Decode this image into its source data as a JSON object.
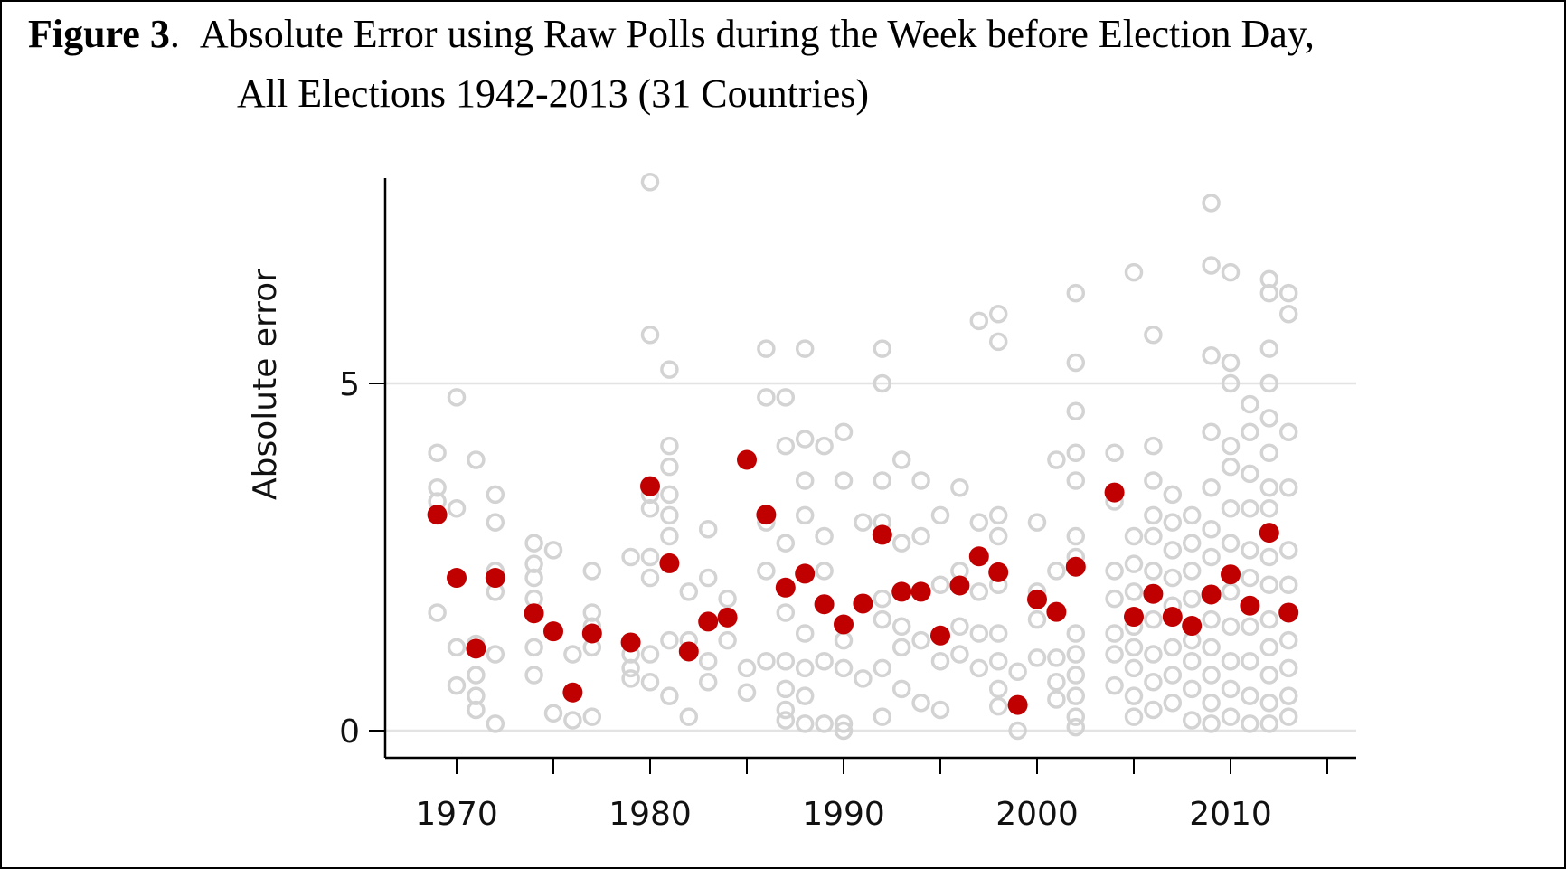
{
  "figure": {
    "label": "Figure 3",
    "title_line1": "Absolute Error using Raw Polls during the Week before Election Day,",
    "title_line2": "All Elections 1942-2013 (31 Countries)"
  },
  "chart_data": {
    "type": "scatter",
    "title": "Absolute Error using Raw Polls during the Week before Election Day, All Elections 1942-2013 (31 Countries)",
    "xlabel": "",
    "ylabel": "Absolute error",
    "xlim": [
      1966.5,
      2016.5
    ],
    "ylim": [
      -0.4,
      8.1
    ],
    "x_ticks": [
      1970,
      1975,
      1980,
      1985,
      1990,
      1995,
      2000,
      2005,
      2010,
      2015
    ],
    "x_tick_labels": [
      "1970",
      "1980",
      "1990",
      "2000",
      "2010"
    ],
    "x_tick_label_values": [
      1970,
      1980,
      1990,
      2000,
      2010
    ],
    "y_ticks": [
      0,
      5
    ],
    "y_tick_labels": [
      "0",
      "5"
    ],
    "grid": "horizontal at y ticks",
    "colors": {
      "polls": "#d3d3d3",
      "mean": "#c00000"
    },
    "series": [
      {
        "marker": "hollow circle",
        "points": [
          [
            1969,
            4.0
          ],
          [
            1969,
            3.5
          ],
          [
            1969,
            3.3
          ],
          [
            1969,
            1.7
          ],
          [
            1970,
            4.8
          ],
          [
            1970,
            3.2
          ],
          [
            1970,
            1.2
          ],
          [
            1970,
            0.65
          ],
          [
            1971,
            3.9
          ],
          [
            1971,
            1.25
          ],
          [
            1971,
            0.8
          ],
          [
            1971,
            0.5
          ],
          [
            1971,
            0.3
          ],
          [
            1972,
            3.4
          ],
          [
            1972,
            3.0
          ],
          [
            1972,
            2.3
          ],
          [
            1972,
            2.0
          ],
          [
            1972,
            1.1
          ],
          [
            1972,
            0.1
          ],
          [
            1974,
            2.7
          ],
          [
            1974,
            2.4
          ],
          [
            1974,
            2.2
          ],
          [
            1974,
            1.9
          ],
          [
            1974,
            1.2
          ],
          [
            1974,
            0.8
          ],
          [
            1975,
            2.6
          ],
          [
            1975,
            0.25
          ],
          [
            1976,
            1.1
          ],
          [
            1976,
            0.15
          ],
          [
            1977,
            2.3
          ],
          [
            1977,
            1.7
          ],
          [
            1977,
            1.5
          ],
          [
            1977,
            1.2
          ],
          [
            1977,
            0.2
          ],
          [
            1979,
            2.5
          ],
          [
            1979,
            1.1
          ],
          [
            1979,
            0.9
          ],
          [
            1979,
            0.75
          ],
          [
            1980,
            7.9
          ],
          [
            1980,
            5.7
          ],
          [
            1980,
            3.4
          ],
          [
            1980,
            3.2
          ],
          [
            1980,
            2.5
          ],
          [
            1980,
            2.2
          ],
          [
            1980,
            1.1
          ],
          [
            1980,
            0.7
          ],
          [
            1981,
            5.2
          ],
          [
            1981,
            4.1
          ],
          [
            1981,
            3.8
          ],
          [
            1981,
            3.4
          ],
          [
            1981,
            3.1
          ],
          [
            1981,
            2.8
          ],
          [
            1981,
            2.4
          ],
          [
            1981,
            1.3
          ],
          [
            1981,
            0.5
          ],
          [
            1982,
            2.0
          ],
          [
            1982,
            1.3
          ],
          [
            1982,
            0.2
          ],
          [
            1983,
            2.9
          ],
          [
            1983,
            2.2
          ],
          [
            1983,
            1.0
          ],
          [
            1983,
            0.7
          ],
          [
            1984,
            1.9
          ],
          [
            1984,
            1.3
          ],
          [
            1985,
            0.9
          ],
          [
            1985,
            0.55
          ],
          [
            1986,
            5.5
          ],
          [
            1986,
            4.8
          ],
          [
            1986,
            3.0
          ],
          [
            1986,
            2.3
          ],
          [
            1986,
            1.0
          ],
          [
            1987,
            4.8
          ],
          [
            1987,
            4.1
          ],
          [
            1987,
            2.7
          ],
          [
            1987,
            1.7
          ],
          [
            1987,
            1.0
          ],
          [
            1987,
            0.6
          ],
          [
            1987,
            0.3
          ],
          [
            1987,
            0.15
          ],
          [
            1988,
            5.5
          ],
          [
            1988,
            4.2
          ],
          [
            1988,
            3.6
          ],
          [
            1988,
            3.1
          ],
          [
            1988,
            1.4
          ],
          [
            1988,
            0.9
          ],
          [
            1988,
            0.5
          ],
          [
            1988,
            0.1
          ],
          [
            1989,
            4.1
          ],
          [
            1989,
            2.8
          ],
          [
            1989,
            2.3
          ],
          [
            1989,
            1.0
          ],
          [
            1989,
            0.1
          ],
          [
            1990,
            4.3
          ],
          [
            1990,
            3.6
          ],
          [
            1990,
            1.3
          ],
          [
            1990,
            0.9
          ],
          [
            1990,
            0.1
          ],
          [
            1990,
            0.0
          ],
          [
            1991,
            3.0
          ],
          [
            1991,
            0.75
          ],
          [
            1992,
            5.5
          ],
          [
            1992,
            5.0
          ],
          [
            1992,
            3.6
          ],
          [
            1992,
            3.0
          ],
          [
            1992,
            1.9
          ],
          [
            1992,
            1.6
          ],
          [
            1992,
            0.9
          ],
          [
            1992,
            0.2
          ],
          [
            1993,
            3.9
          ],
          [
            1993,
            2.7
          ],
          [
            1993,
            1.5
          ],
          [
            1993,
            1.2
          ],
          [
            1993,
            0.6
          ],
          [
            1994,
            3.6
          ],
          [
            1994,
            2.8
          ],
          [
            1994,
            1.3
          ],
          [
            1994,
            0.4
          ],
          [
            1995,
            3.1
          ],
          [
            1995,
            2.1
          ],
          [
            1995,
            1.0
          ],
          [
            1995,
            0.3
          ],
          [
            1996,
            3.5
          ],
          [
            1996,
            2.3
          ],
          [
            1996,
            1.5
          ],
          [
            1996,
            1.1
          ],
          [
            1997,
            5.9
          ],
          [
            1997,
            3.0
          ],
          [
            1997,
            2.0
          ],
          [
            1997,
            1.4
          ],
          [
            1997,
            0.9
          ],
          [
            1998,
            6.0
          ],
          [
            1998,
            5.6
          ],
          [
            1998,
            3.1
          ],
          [
            1998,
            2.8
          ],
          [
            1998,
            2.1
          ],
          [
            1998,
            1.4
          ],
          [
            1998,
            1.0
          ],
          [
            1998,
            0.6
          ],
          [
            1998,
            0.35
          ],
          [
            1999,
            0.85
          ],
          [
            1999,
            0.0
          ],
          [
            2000,
            3.0
          ],
          [
            2000,
            2.0
          ],
          [
            2000,
            1.6
          ],
          [
            2000,
            1.05
          ],
          [
            2001,
            3.9
          ],
          [
            2001,
            2.3
          ],
          [
            2001,
            1.05
          ],
          [
            2001,
            0.7
          ],
          [
            2001,
            0.45
          ],
          [
            2002,
            6.3
          ],
          [
            2002,
            5.3
          ],
          [
            2002,
            4.6
          ],
          [
            2002,
            4.0
          ],
          [
            2002,
            3.6
          ],
          [
            2002,
            2.8
          ],
          [
            2002,
            2.5
          ],
          [
            2002,
            1.4
          ],
          [
            2002,
            1.1
          ],
          [
            2002,
            0.8
          ],
          [
            2002,
            0.5
          ],
          [
            2002,
            0.2
          ],
          [
            2002,
            0.05
          ],
          [
            2004,
            4.0
          ],
          [
            2004,
            3.3
          ],
          [
            2004,
            2.3
          ],
          [
            2004,
            1.9
          ],
          [
            2004,
            1.4
          ],
          [
            2004,
            1.1
          ],
          [
            2004,
            0.65
          ],
          [
            2005,
            6.6
          ],
          [
            2005,
            2.8
          ],
          [
            2005,
            2.4
          ],
          [
            2005,
            2.0
          ],
          [
            2005,
            1.5
          ],
          [
            2005,
            1.2
          ],
          [
            2005,
            0.9
          ],
          [
            2005,
            0.5
          ],
          [
            2005,
            0.2
          ],
          [
            2006,
            5.7
          ],
          [
            2006,
            4.1
          ],
          [
            2006,
            3.6
          ],
          [
            2006,
            3.1
          ],
          [
            2006,
            2.8
          ],
          [
            2006,
            2.3
          ],
          [
            2006,
            1.6
          ],
          [
            2006,
            1.1
          ],
          [
            2006,
            0.7
          ],
          [
            2006,
            0.3
          ],
          [
            2007,
            3.4
          ],
          [
            2007,
            3.0
          ],
          [
            2007,
            2.6
          ],
          [
            2007,
            2.2
          ],
          [
            2007,
            1.8
          ],
          [
            2007,
            1.2
          ],
          [
            2007,
            0.8
          ],
          [
            2007,
            0.4
          ],
          [
            2008,
            3.1
          ],
          [
            2008,
            2.7
          ],
          [
            2008,
            2.3
          ],
          [
            2008,
            1.9
          ],
          [
            2008,
            1.3
          ],
          [
            2008,
            1.0
          ],
          [
            2008,
            0.6
          ],
          [
            2008,
            0.15
          ],
          [
            2009,
            7.6
          ],
          [
            2009,
            6.7
          ],
          [
            2009,
            5.4
          ],
          [
            2009,
            4.3
          ],
          [
            2009,
            3.5
          ],
          [
            2009,
            2.9
          ],
          [
            2009,
            2.5
          ],
          [
            2009,
            1.6
          ],
          [
            2009,
            1.2
          ],
          [
            2009,
            0.8
          ],
          [
            2009,
            0.4
          ],
          [
            2009,
            0.1
          ],
          [
            2010,
            6.6
          ],
          [
            2010,
            5.3
          ],
          [
            2010,
            5.0
          ],
          [
            2010,
            4.1
          ],
          [
            2010,
            3.8
          ],
          [
            2010,
            3.2
          ],
          [
            2010,
            2.7
          ],
          [
            2010,
            2.0
          ],
          [
            2010,
            1.5
          ],
          [
            2010,
            1.0
          ],
          [
            2010,
            0.6
          ],
          [
            2010,
            0.2
          ],
          [
            2011,
            4.7
          ],
          [
            2011,
            4.3
          ],
          [
            2011,
            3.7
          ],
          [
            2011,
            3.2
          ],
          [
            2011,
            2.6
          ],
          [
            2011,
            2.2
          ],
          [
            2011,
            1.5
          ],
          [
            2011,
            1.0
          ],
          [
            2011,
            0.5
          ],
          [
            2011,
            0.1
          ],
          [
            2012,
            6.5
          ],
          [
            2012,
            6.3
          ],
          [
            2012,
            5.5
          ],
          [
            2012,
            5.0
          ],
          [
            2012,
            4.5
          ],
          [
            2012,
            4.0
          ],
          [
            2012,
            3.5
          ],
          [
            2012,
            3.2
          ],
          [
            2012,
            2.5
          ],
          [
            2012,
            2.1
          ],
          [
            2012,
            1.6
          ],
          [
            2012,
            1.2
          ],
          [
            2012,
            0.8
          ],
          [
            2012,
            0.4
          ],
          [
            2012,
            0.1
          ],
          [
            2013,
            6.3
          ],
          [
            2013,
            6.0
          ],
          [
            2013,
            4.3
          ],
          [
            2013,
            3.5
          ],
          [
            2013,
            2.6
          ],
          [
            2013,
            2.1
          ],
          [
            2013,
            1.7
          ],
          [
            2013,
            1.3
          ],
          [
            2013,
            0.9
          ],
          [
            2013,
            0.5
          ],
          [
            2013,
            0.2
          ]
        ]
      },
      {
        "marker": "filled circle",
        "points": [
          [
            1969,
            3.11
          ],
          [
            1970,
            2.2
          ],
          [
            1971,
            1.18
          ],
          [
            1972,
            2.2
          ],
          [
            1974,
            1.69
          ],
          [
            1975,
            1.43
          ],
          [
            1976,
            0.55
          ],
          [
            1977,
            1.4
          ],
          [
            1979,
            1.27
          ],
          [
            1980,
            3.52
          ],
          [
            1981,
            2.41
          ],
          [
            1982,
            1.14
          ],
          [
            1983,
            1.57
          ],
          [
            1984,
            1.63
          ],
          [
            1985,
            3.9
          ],
          [
            1986,
            3.11
          ],
          [
            1987,
            2.06
          ],
          [
            1988,
            2.26
          ],
          [
            1989,
            1.82
          ],
          [
            1990,
            1.53
          ],
          [
            1991,
            1.83
          ],
          [
            1992,
            2.82
          ],
          [
            1993,
            2.0
          ],
          [
            1994,
            2.0
          ],
          [
            1995,
            1.37
          ],
          [
            1996,
            2.09
          ],
          [
            1997,
            2.51
          ],
          [
            1998,
            2.28
          ],
          [
            1999,
            0.37
          ],
          [
            2000,
            1.89
          ],
          [
            2001,
            1.71
          ],
          [
            2002,
            2.36
          ],
          [
            2004,
            3.43
          ],
          [
            2005,
            1.64
          ],
          [
            2006,
            1.97
          ],
          [
            2007,
            1.64
          ],
          [
            2008,
            1.51
          ],
          [
            2009,
            1.96
          ],
          [
            2010,
            2.25
          ],
          [
            2011,
            1.8
          ],
          [
            2012,
            2.85
          ],
          [
            2013,
            1.7
          ]
        ]
      }
    ]
  }
}
